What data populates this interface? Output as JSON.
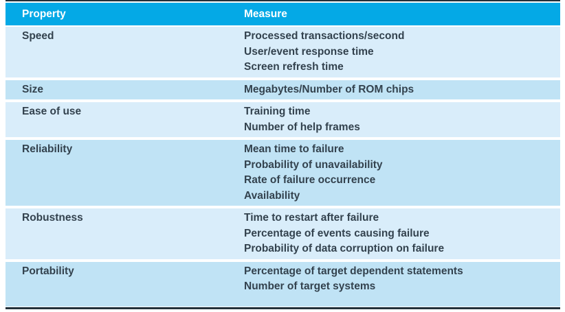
{
  "table": {
    "columns": [
      {
        "label": "Property"
      },
      {
        "label": "Measure"
      }
    ],
    "rows": [
      {
        "property": "Speed",
        "measures": [
          "Processed transactions/second",
          "User/event response time",
          "Screen refresh time"
        ]
      },
      {
        "property": "Size",
        "measures": [
          "Megabytes/Number of ROM chips"
        ]
      },
      {
        "property": "Ease of use",
        "measures": [
          "Training time",
          "Number of help frames"
        ]
      },
      {
        "property": "Reliability",
        "measures": [
          "Mean time to failure",
          "Probability of unavailability",
          "Rate of failure occurrence",
          "Availability"
        ]
      },
      {
        "property": "Robustness",
        "measures": [
          "Time to restart after failure",
          "Percentage of events causing failure",
          "Probability of data corruption on failure"
        ]
      },
      {
        "property": "Portability",
        "measures": [
          "Percentage of target dependent statements",
          "Number of target systems"
        ]
      }
    ]
  },
  "colors": {
    "header_bg": "#04a9e6",
    "header_text": "#ffffff",
    "row_light": "#d9edfa",
    "row_dark": "#c0e3f5",
    "rule": "#22303a",
    "body_text": "#33424e"
  }
}
